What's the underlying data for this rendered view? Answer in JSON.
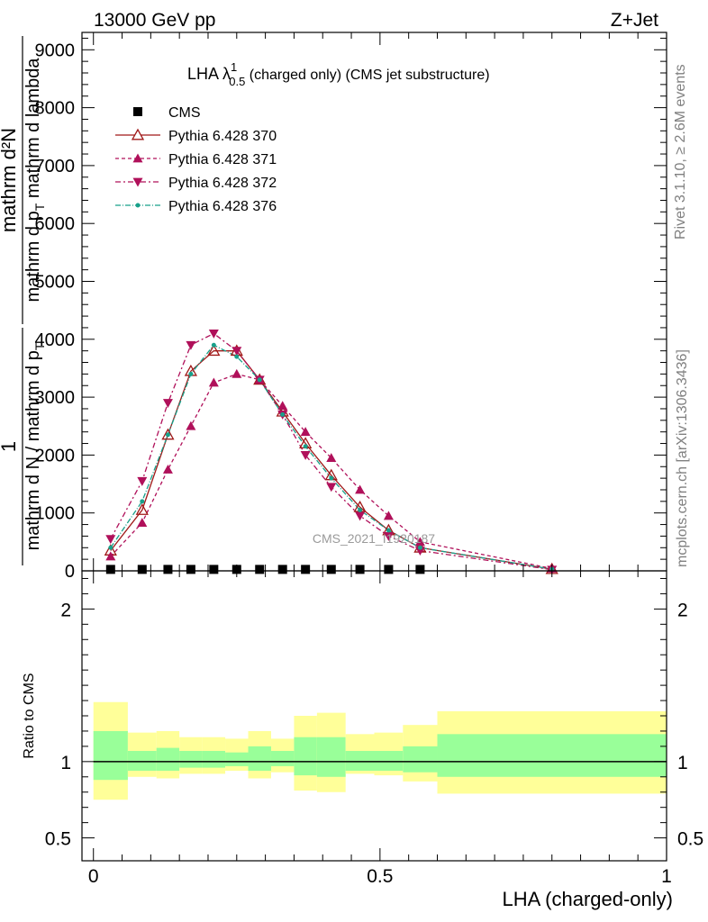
{
  "header": {
    "left": "13000 GeV pp",
    "right": "Z+Jet",
    "side_top": "Rivet 3.1.10, ≥ 2.6M events",
    "side_bottom": "mcplots.cern.ch [arXiv:1306.3436]",
    "watermark": "CMS_2021_I1920187"
  },
  "chart_data": [
    {
      "type": "line",
      "title_main": "LHA λ",
      "title_sup": "1",
      "title_sub": "0.5",
      "title_rest": " (charged only) (CMS jet substructure)",
      "ylabel_num": "mathrm d²N",
      "ylabel_den": "mathrm d p",
      "ylabel_den_sub": "T",
      "ylabel_den_rest": " mathrm d lambda",
      "ylabel_lhs_num": "1",
      "ylabel_lhs_den": "mathrm d N / mathrm d p",
      "ylabel_lhs_den_sub": "T",
      "ylim": [
        0,
        9300
      ],
      "yticks": [
        0,
        1000,
        2000,
        3000,
        4000,
        5000,
        6000,
        7000,
        8000,
        9000
      ],
      "ytick_labels_visible": [
        "0",
        "1000",
        "2000",
        "3000",
        "4000",
        "5000",
        "6000",
        "7000",
        "8000",
        "9000"
      ],
      "xlim": [
        -0.02,
        1.0
      ],
      "legend": {
        "placement": "top-left",
        "entries": [
          "CMS",
          "Pythia 6.428 370",
          "Pythia 6.428 371",
          "Pythia 6.428 372",
          "Pythia 6.428 376"
        ]
      },
      "series": [
        {
          "name": "CMS",
          "color": "#000000",
          "marker": "square",
          "x": [
            0.03,
            0.085,
            0.13,
            0.17,
            0.21,
            0.25,
            0.29,
            0.33,
            0.37,
            0.415,
            0.465,
            0.515,
            0.57
          ],
          "y": [
            25,
            25,
            25,
            25,
            25,
            25,
            25,
            25,
            25,
            25,
            25,
            25,
            25
          ]
        },
        {
          "name": "Pythia 6.428 370",
          "color": "#a01818",
          "dash": "solid",
          "marker": "triangle-up-open",
          "x": [
            0.03,
            0.085,
            0.13,
            0.17,
            0.21,
            0.25,
            0.29,
            0.33,
            0.37,
            0.415,
            0.465,
            0.515,
            0.57,
            0.8
          ],
          "y": [
            350,
            1050,
            2350,
            3450,
            3800,
            3800,
            3300,
            2750,
            2200,
            1650,
            1100,
            700,
            400,
            30
          ]
        },
        {
          "name": "Pythia 6.428 371",
          "color": "#b0105a",
          "dash": "4,3",
          "marker": "triangle-up",
          "x": [
            0.03,
            0.085,
            0.13,
            0.17,
            0.21,
            0.25,
            0.29,
            0.33,
            0.37,
            0.415,
            0.465,
            0.515,
            0.57,
            0.8
          ],
          "y": [
            250,
            830,
            1750,
            2500,
            3250,
            3400,
            3300,
            2850,
            2400,
            1950,
            1400,
            950,
            500,
            40
          ]
        },
        {
          "name": "Pythia 6.428 372",
          "color": "#b0105a",
          "dash": "6,3,2,3",
          "marker": "triangle-down",
          "x": [
            0.03,
            0.085,
            0.13,
            0.17,
            0.21,
            0.25,
            0.29,
            0.33,
            0.37,
            0.415,
            0.465,
            0.515,
            0.57,
            0.8
          ],
          "y": [
            550,
            1550,
            2900,
            3900,
            4100,
            3800,
            3300,
            2700,
            2000,
            1450,
            950,
            600,
            350,
            20
          ]
        },
        {
          "name": "Pythia 6.428 376",
          "color": "#18a08a",
          "dash": "6,2,1,2",
          "marker": "dot",
          "x": [
            0.03,
            0.085,
            0.13,
            0.17,
            0.21,
            0.25,
            0.29,
            0.33,
            0.37,
            0.415,
            0.465,
            0.515,
            0.57,
            0.8
          ],
          "y": [
            400,
            1200,
            2350,
            3400,
            3900,
            3700,
            3300,
            2700,
            2150,
            1600,
            1050,
            700,
            400,
            30
          ]
        }
      ]
    },
    {
      "type": "area",
      "ylabel": "Ratio to CMS",
      "xlabel": "LHA (charged-only)",
      "ylim": [
        0.35,
        2.25
      ],
      "yticks": [
        0.5,
        1,
        2
      ],
      "ytick_labels": [
        "0.5",
        "1",
        "2"
      ],
      "xlim": [
        -0.02,
        1.0
      ],
      "xticks": [
        0,
        0.5,
        1
      ],
      "xtick_labels": [
        "0",
        "0.5",
        "1"
      ],
      "band_colors": {
        "outer": "#ffff99",
        "inner": "#99ff99",
        "line": "#000000"
      },
      "bins": [
        {
          "lo": 0.0,
          "hi": 0.06,
          "inner": [
            0.88,
            1.2
          ],
          "outer": [
            0.75,
            1.39
          ]
        },
        {
          "lo": 0.06,
          "hi": 0.11,
          "inner": [
            0.94,
            1.07
          ],
          "outer": [
            0.9,
            1.19
          ]
        },
        {
          "lo": 0.11,
          "hi": 0.15,
          "inner": [
            0.94,
            1.09
          ],
          "outer": [
            0.89,
            1.2
          ]
        },
        {
          "lo": 0.15,
          "hi": 0.19,
          "inner": [
            0.96,
            1.07
          ],
          "outer": [
            0.92,
            1.16
          ]
        },
        {
          "lo": 0.19,
          "hi": 0.23,
          "inner": [
            0.96,
            1.07
          ],
          "outer": [
            0.92,
            1.16
          ]
        },
        {
          "lo": 0.23,
          "hi": 0.27,
          "inner": [
            0.97,
            1.06
          ],
          "outer": [
            0.94,
            1.15
          ]
        },
        {
          "lo": 0.27,
          "hi": 0.31,
          "inner": [
            0.94,
            1.1
          ],
          "outer": [
            0.89,
            1.2
          ]
        },
        {
          "lo": 0.31,
          "hi": 0.35,
          "inner": [
            0.97,
            1.07
          ],
          "outer": [
            0.93,
            1.15
          ]
        },
        {
          "lo": 0.35,
          "hi": 0.39,
          "inner": [
            0.91,
            1.16
          ],
          "outer": [
            0.81,
            1.3
          ]
        },
        {
          "lo": 0.39,
          "hi": 0.44,
          "inner": [
            0.9,
            1.16
          ],
          "outer": [
            0.8,
            1.32
          ]
        },
        {
          "lo": 0.44,
          "hi": 0.49,
          "inner": [
            0.94,
            1.07
          ],
          "outer": [
            0.92,
            1.18
          ]
        },
        {
          "lo": 0.49,
          "hi": 0.54,
          "inner": [
            0.94,
            1.07
          ],
          "outer": [
            0.91,
            1.19
          ]
        },
        {
          "lo": 0.54,
          "hi": 0.6,
          "inner": [
            0.93,
            1.1
          ],
          "outer": [
            0.87,
            1.24
          ]
        },
        {
          "lo": 0.6,
          "hi": 1.0,
          "inner": [
            0.9,
            1.18
          ],
          "outer": [
            0.79,
            1.33
          ]
        }
      ]
    }
  ]
}
